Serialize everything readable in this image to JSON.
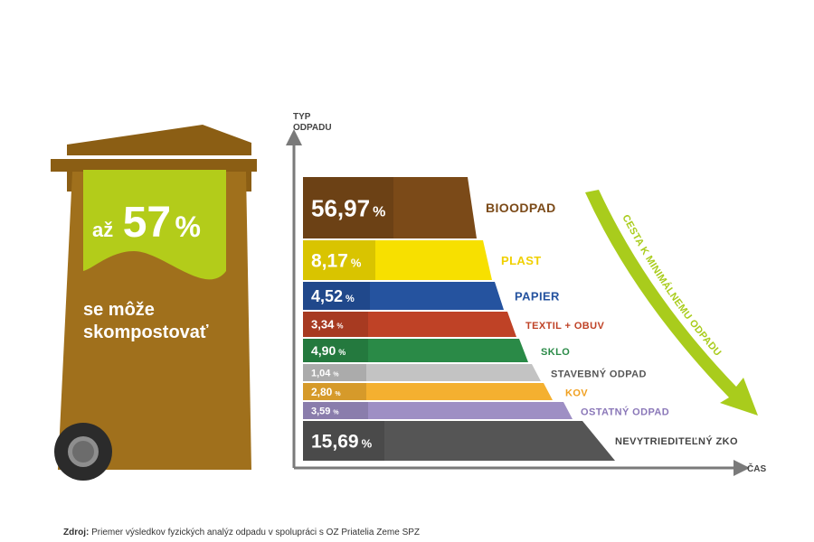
{
  "colors": {
    "bin_brown": "#a0701c",
    "bin_brown_dark": "#8b5e14",
    "lime": "#b3cc1a",
    "axis": "#7a7a7a",
    "arrow": "#a9cc1c"
  },
  "bin": {
    "prefix": "až",
    "percent_number": "57",
    "percent_sign": "%",
    "caption_line1": "se môže",
    "caption_line2": "skompostovať"
  },
  "axes": {
    "y_label_line1": "TYP",
    "y_label_line2": "ODPADU",
    "x_label": "ČAS"
  },
  "arrow_label": "CESTA K MINIMÁLNEMU ODPADU",
  "chart_data": {
    "type": "bar",
    "categories": [
      "BIOODPAD",
      "PLAST",
      "PAPIER",
      "TEXTIL + OBUV",
      "SKLO",
      "STAVEBNÝ ODPAD",
      "KOV",
      "OSTATNÝ ODPAD",
      "NEVYTRIEDITEĽNÝ ZKO"
    ],
    "values": [
      56.97,
      8.17,
      4.52,
      3.34,
      4.9,
      1.04,
      2.8,
      3.59,
      15.69
    ],
    "value_labels": [
      "56,97",
      "8,17",
      "4,52",
      "3,34",
      "4,90",
      "1,04",
      "2,80",
      "3,59",
      "15,69"
    ],
    "unit": "%",
    "colors": [
      "#7b4a18",
      "#f7e000",
      "#25539f",
      "#bf4226",
      "#2a8a47",
      "#c3c3c3",
      "#f4b030",
      "#9e8fc4",
      "#555555"
    ],
    "label_colors": [
      "#7b4a18",
      "#f0d000",
      "#25539f",
      "#bf4226",
      "#2a8a47",
      "#555555",
      "#f0a020",
      "#8a77b8",
      "#444444"
    ]
  },
  "footer": {
    "source_label": "Zdroj:",
    "source_text": "Priemer výsledkov fyzických analýz odpadu v spolupráci s OZ Priatelia Zeme SPZ"
  }
}
